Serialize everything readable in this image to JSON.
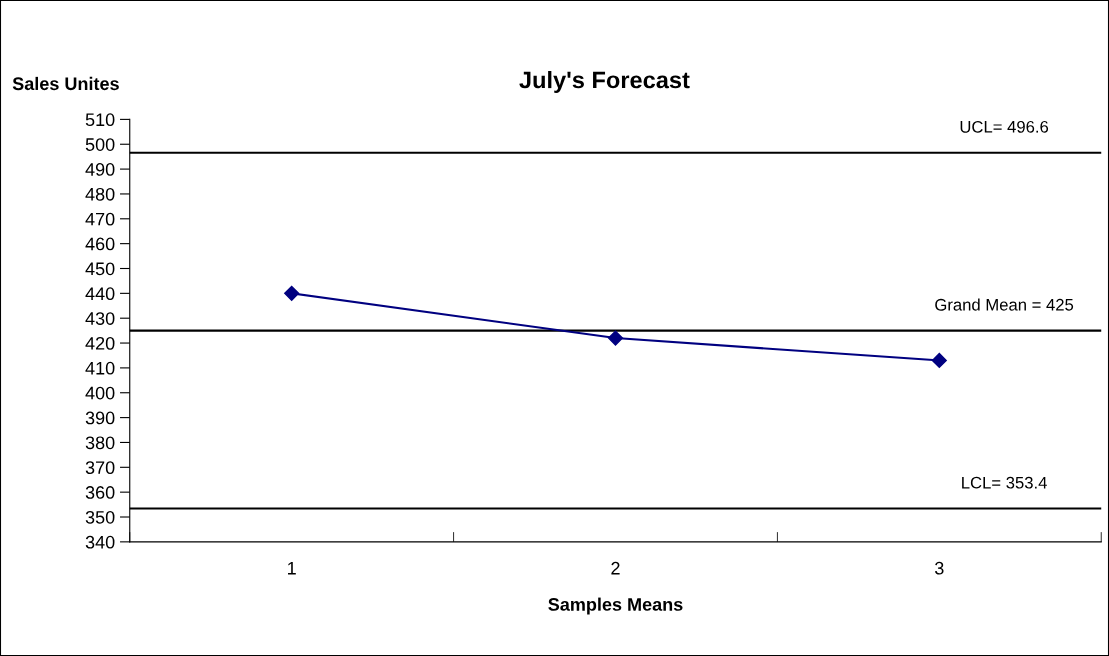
{
  "chart_data": {
    "type": "line",
    "title": "July's Forecast",
    "xlabel": "Samples Means",
    "ylabel": "Sales Unites",
    "categories": [
      "1",
      "2",
      "3"
    ],
    "series": [
      {
        "color": "#000080",
        "values": [
          440,
          422,
          413
        ]
      }
    ],
    "marker": "diamond",
    "line_style": "solid",
    "ylim": [
      340,
      510
    ],
    "yticks": [
      340,
      350,
      360,
      370,
      380,
      390,
      400,
      410,
      420,
      430,
      440,
      450,
      460,
      470,
      480,
      490,
      500,
      510
    ],
    "grid": false,
    "legend": false,
    "ref_lines": [
      {
        "axis": "y",
        "value": 496.6,
        "label": "UCL= 496.6",
        "color": "#000000",
        "line_style": "solid"
      },
      {
        "axis": "y",
        "value": 425,
        "label": "Grand Mean = 425",
        "color": "#000000",
        "line_style": "solid"
      },
      {
        "axis": "y",
        "value": 353.4,
        "label": "LCL= 353.4",
        "color": "#000000",
        "line_style": "solid"
      }
    ]
  }
}
